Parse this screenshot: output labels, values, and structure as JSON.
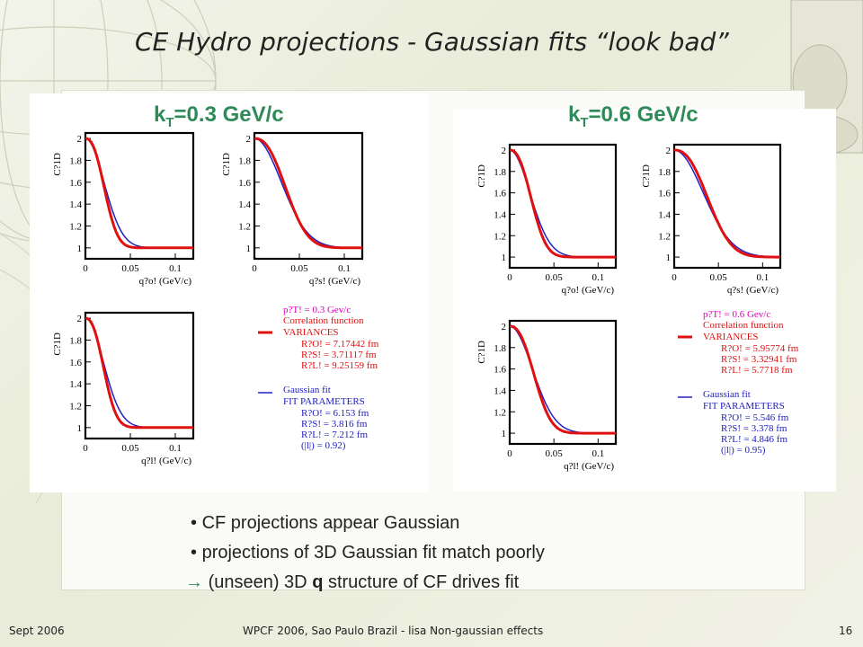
{
  "slide": {
    "title": "CE Hydro projections - Gaussian fits “look bad”",
    "footer_left": "Sept 2006",
    "footer_center": "WPCF 2006, Sao Paulo Brazil - lisa Non-gaussian effects",
    "footer_right": "16",
    "bullets": [
      {
        "marker": "•",
        "text": "CF projections appear Gaussian"
      },
      {
        "marker": "•",
        "text": "projections of 3D Gaussian fit match poorly"
      }
    ],
    "arrow_line": {
      "marker": "→",
      "pre": "(unseen) 3D ",
      "bold": "q",
      "post": " structure of CF drives fit"
    }
  },
  "colors": {
    "accent_green": "#2e8b57",
    "cf_red": "#e01010",
    "fit_blue": "#2020c0",
    "legend_magenta": "#e000c0"
  },
  "chart_data": [
    {
      "type": "line",
      "panel_label": {
        "base": "k",
        "sub": "T",
        "rest": "=0.3 GeV/c"
      },
      "ylabel": "C?1D",
      "ylim": [
        0.9,
        2.05
      ],
      "xlim": [
        0,
        0.12
      ],
      "yticks": [
        "2",
        "1.8",
        "1.6",
        "1.4",
        "1.2",
        "1"
      ],
      "xticks": [
        "0",
        "0.05",
        "0.1"
      ],
      "subplots": [
        {
          "xlabel": "q?o! (GeV/c)",
          "cf_width": 0.026,
          "fit_width": 0.029
        },
        {
          "xlabel": "q?s! (GeV/c)",
          "cf_width": 0.043,
          "fit_width": 0.042
        },
        {
          "xlabel": "q?l! (GeV/c)",
          "cf_width": 0.025,
          "fit_width": 0.028
        }
      ],
      "series": [
        {
          "name": "Correlation function",
          "color": "#e01010"
        },
        {
          "name": "Gaussian fit",
          "color": "#2020c0"
        }
      ],
      "legend": {
        "header": "p?T! = 0.3 Gev/c",
        "cf_label": "Correlation function",
        "var_title": "VARIANCES",
        "var_lines": [
          "R?O! = 7.17442 fm",
          "R?S! = 3.71117 fm",
          "R?L! = 9.25159 fm"
        ],
        "fit_label": "Gaussian fit",
        "fit_title": "FIT PARAMETERS",
        "fit_lines": [
          "R?O! = 6.153 fm",
          "R?S! = 3.816 fm",
          "R?L! = 7.212 fm",
          "(|l|) = 0.92)"
        ]
      }
    },
    {
      "type": "line",
      "panel_label": {
        "base": "k",
        "sub": "T",
        "rest": "=0.6 GeV/c"
      },
      "ylabel": "C?1D",
      "ylim": [
        0.9,
        2.05
      ],
      "xlim": [
        0,
        0.12
      ],
      "yticks": [
        "2",
        "1.8",
        "1.6",
        "1.4",
        "1.2",
        "1"
      ],
      "xticks": [
        "0",
        "0.05",
        "0.1"
      ],
      "subplots": [
        {
          "xlabel": "q?o! (GeV/c)",
          "cf_width": 0.03,
          "fit_width": 0.032
        },
        {
          "xlabel": "q?s! (GeV/c)",
          "cf_width": 0.047,
          "fit_width": 0.046
        },
        {
          "xlabel": "q?l! (GeV/c)",
          "cf_width": 0.034,
          "fit_width": 0.036
        }
      ],
      "series": [
        {
          "name": "Correlation function",
          "color": "#e01010"
        },
        {
          "name": "Gaussian fit",
          "color": "#2020c0"
        }
      ],
      "legend": {
        "header": "p?T! = 0.6 Gev/c",
        "cf_label": "Correlation function",
        "var_title": "VARIANCES",
        "var_lines": [
          "R?O! = 5.95774 fm",
          "R?S! = 3.32941 fm",
          "R?L! = 5.7718 fm"
        ],
        "fit_label": "Gaussian fit",
        "fit_title": "FIT PARAMETERS",
        "fit_lines": [
          "R?O! = 5.546 fm",
          "R?S! = 3.378 fm",
          "R?L! = 4.846 fm",
          "(|l|) = 0.95)"
        ]
      }
    }
  ]
}
